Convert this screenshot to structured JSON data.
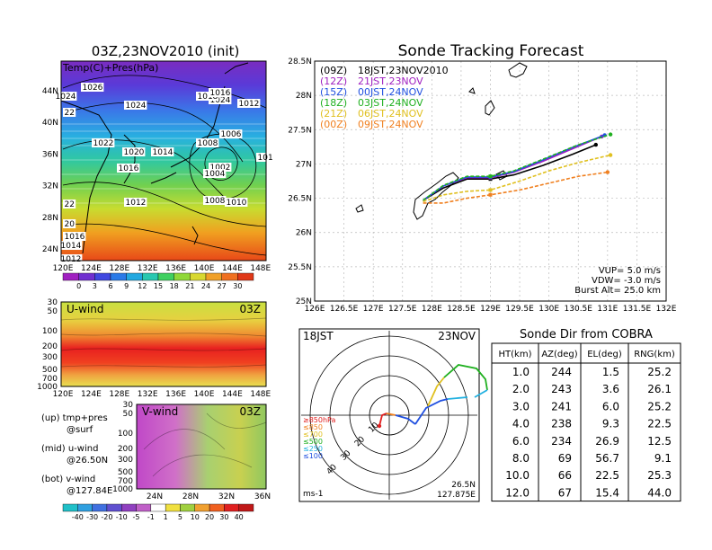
{
  "left_panel": {
    "title": "03Z,23NOV2010 (init)",
    "map_label": "Temp(C)+Pres(hPa)",
    "lat_labels": [
      "44N",
      "40N",
      "36N",
      "32N",
      "28N",
      "24N"
    ],
    "lon_labels": [
      "120E",
      "124E",
      "128E",
      "132E",
      "136E",
      "140E",
      "144E",
      "148E"
    ],
    "pressure_labels": [
      "1026",
      "1024",
      "1024",
      "1024",
      "1018",
      "1016",
      "1012",
      "22",
      "1022",
      "1020",
      "1014",
      "1008",
      "1006",
      "101",
      "1016",
      "1002",
      "1004",
      "1012",
      "1008",
      "1010",
      "22",
      "20",
      "1016",
      "1014",
      "1012"
    ],
    "colorbar_labels": [
      "0",
      "3",
      "6",
      "9",
      "12",
      "15",
      "18",
      "21",
      "24",
      "27",
      "30"
    ],
    "uwind": {
      "title": "U-wind",
      "time": "03Z",
      "y_labels": [
        "30",
        "50",
        "100",
        "200",
        "300",
        "500",
        "700",
        "1000"
      ],
      "x_labels": [
        "120E",
        "124E",
        "128E",
        "132E",
        "136E",
        "140E",
        "144E",
        "148E"
      ]
    },
    "vwind": {
      "title": "V-wind",
      "time": "03Z",
      "y_labels": [
        "30",
        "50",
        "100",
        "200",
        "300",
        "500",
        "700",
        "1000"
      ],
      "x_labels": [
        "24N",
        "28N",
        "32N",
        "36N"
      ]
    },
    "legend_text": {
      "up_line1": "(up) tmp+pres",
      "up_line2": "@surf",
      "mid_line1": "(mid) u-wind",
      "mid_line2": "@26.50N",
      "bot_line1": "(bot) v-wind",
      "bot_line2": "@127.84E"
    },
    "wind_colorbar_labels": [
      "-40",
      "-30",
      "-20",
      "-10",
      "-5",
      "-1",
      "1",
      "5",
      "10",
      "20",
      "30",
      "40"
    ]
  },
  "tracking": {
    "title": "Sonde Tracking Forecast",
    "legend": [
      {
        "code": "(09Z)",
        "label": "18JST,23NOV2010",
        "color": "#000000"
      },
      {
        "code": "(12Z)",
        "label": "21JST,23NOV",
        "color": "#a020c0"
      },
      {
        "code": "(15Z)",
        "label": "00JST,24NOV",
        "color": "#2050e0"
      },
      {
        "code": "(18Z)",
        "label": "03JST,24NOV",
        "color": "#20b020"
      },
      {
        "code": "(21Z)",
        "label": "06JST,24NOV",
        "color": "#e0c020"
      },
      {
        "code": "(00Z)",
        "label": "09JST,24NOV",
        "color": "#f08020"
      }
    ],
    "params": [
      "VUP= 5.0 m/s",
      "VDW= -3.0 m/s",
      "Burst Alt= 25.0 km"
    ]
  },
  "polar": {
    "time_label": "18JST",
    "date_label": "23NOV",
    "ring_labels": [
      "10",
      "20",
      "30",
      "40"
    ],
    "unit": "ms-1",
    "location_lat": "26.5N",
    "location_lon": "127.875E",
    "levels": [
      {
        "label": "≥850hPa",
        "color": "#e02020"
      },
      {
        "label": "≤850",
        "color": "#f08020"
      },
      {
        "label": "≤700",
        "color": "#e0c020"
      },
      {
        "label": "≤500",
        "color": "#20b020"
      },
      {
        "label": "≤250",
        "color": "#20b0e0"
      },
      {
        "label": "≤100",
        "color": "#2050e0"
      }
    ]
  },
  "table": {
    "title": "Sonde Dir from COBRA",
    "headers": [
      "HT(km)",
      "AZ(deg)",
      "EL(deg)",
      "RNG(km)"
    ],
    "rows": [
      [
        "1.0",
        "244",
        "1.5",
        "25.2"
      ],
      [
        "2.0",
        "243",
        "3.6",
        "26.1"
      ],
      [
        "3.0",
        "241",
        "6.0",
        "25.2"
      ],
      [
        "4.0",
        "238",
        "9.3",
        "22.5"
      ],
      [
        "6.0",
        "234",
        "26.9",
        "12.5"
      ],
      [
        "8.0",
        "69",
        "56.7",
        "9.1"
      ],
      [
        "10.0",
        "66",
        "22.5",
        "25.3"
      ],
      [
        "12.0",
        "67",
        "15.4",
        "44.0"
      ]
    ]
  },
  "chart_data": [
    {
      "type": "line",
      "title": "Sonde Tracking Forecast",
      "xlabel": "",
      "ylabel": "",
      "xlim": [
        126,
        132
      ],
      "ylim": [
        25,
        28.5
      ],
      "x_ticks": [
        "126E",
        "126.5E",
        "127E",
        "127.5E",
        "128E",
        "128.5E",
        "129E",
        "129.5E",
        "130E",
        "130.5E",
        "131E",
        "131.5E",
        "132E"
      ],
      "y_ticks": [
        "25N",
        "25.5N",
        "26N",
        "26.5N",
        "27N",
        "27.5N",
        "28N",
        "28.5N"
      ],
      "grid": true,
      "series": [
        {
          "name": "(09Z) 18JST,23NOV2010",
          "color": "#000000",
          "style": "solid",
          "points": [
            [
              127.85,
              26.47
            ],
            [
              128.2,
              26.65
            ],
            [
              128.6,
              26.78
            ],
            [
              129.0,
              26.78
            ],
            [
              129.4,
              26.84
            ],
            [
              129.9,
              26.98
            ],
            [
              130.4,
              27.14
            ],
            [
              130.8,
              27.28
            ]
          ]
        },
        {
          "name": "(12Z) 21JST,23NOV",
          "color": "#a020c0",
          "style": "solid",
          "points": [
            [
              127.85,
              26.47
            ],
            [
              128.2,
              26.68
            ],
            [
              128.6,
              26.8
            ],
            [
              129.0,
              26.8
            ],
            [
              129.4,
              26.88
            ],
            [
              129.9,
              27.04
            ],
            [
              130.4,
              27.22
            ],
            [
              130.9,
              27.4
            ]
          ]
        },
        {
          "name": "(15Z) 00JST,24NOV",
          "color": "#2050e0",
          "style": "solid",
          "points": [
            [
              127.85,
              26.47
            ],
            [
              128.2,
              26.68
            ],
            [
              128.6,
              26.81
            ],
            [
              129.0,
              26.81
            ],
            [
              129.4,
              26.89
            ],
            [
              129.9,
              27.06
            ],
            [
              130.4,
              27.24
            ],
            [
              130.95,
              27.42
            ]
          ]
        },
        {
          "name": "(18Z) 03JST,24NOV",
          "color": "#20b020",
          "style": "dashed",
          "points": [
            [
              127.85,
              26.47
            ],
            [
              128.2,
              26.69
            ],
            [
              128.6,
              26.82
            ],
            [
              129.0,
              26.82
            ],
            [
              129.4,
              26.9
            ],
            [
              129.9,
              27.07
            ],
            [
              130.5,
              27.28
            ],
            [
              131.05,
              27.43
            ]
          ]
        },
        {
          "name": "(21Z) 06JST,24NOV",
          "color": "#e0c020",
          "style": "dashed",
          "points": [
            [
              127.85,
              26.45
            ],
            [
              128.2,
              26.55
            ],
            [
              128.6,
              26.6
            ],
            [
              129.0,
              26.62
            ],
            [
              129.5,
              26.75
            ],
            [
              130.0,
              26.9
            ],
            [
              130.5,
              27.02
            ],
            [
              131.05,
              27.13
            ]
          ]
        },
        {
          "name": "(00Z) 09JST,24NOV",
          "color": "#f08020",
          "style": "dashed",
          "points": [
            [
              127.85,
              26.43
            ],
            [
              128.2,
              26.43
            ],
            [
              128.6,
              26.5
            ],
            [
              129.0,
              26.55
            ],
            [
              129.5,
              26.62
            ],
            [
              130.0,
              26.72
            ],
            [
              130.5,
              26.82
            ],
            [
              131.0,
              26.88
            ]
          ]
        }
      ]
    },
    {
      "type": "table",
      "title": "Sonde Dir from COBRA",
      "columns": [
        "HT(km)",
        "AZ(deg)",
        "EL(deg)",
        "RNG(km)"
      ],
      "rows": [
        [
          1.0,
          244,
          1.5,
          25.2
        ],
        [
          2.0,
          243,
          3.6,
          26.1
        ],
        [
          3.0,
          241,
          6.0,
          25.2
        ],
        [
          4.0,
          238,
          9.3,
          22.5
        ],
        [
          6.0,
          234,
          26.9,
          12.5
        ],
        [
          8.0,
          69,
          56.7,
          9.1
        ],
        [
          10.0,
          66,
          22.5,
          25.3
        ],
        [
          12.0,
          67,
          15.4,
          44.0
        ]
      ]
    }
  ]
}
